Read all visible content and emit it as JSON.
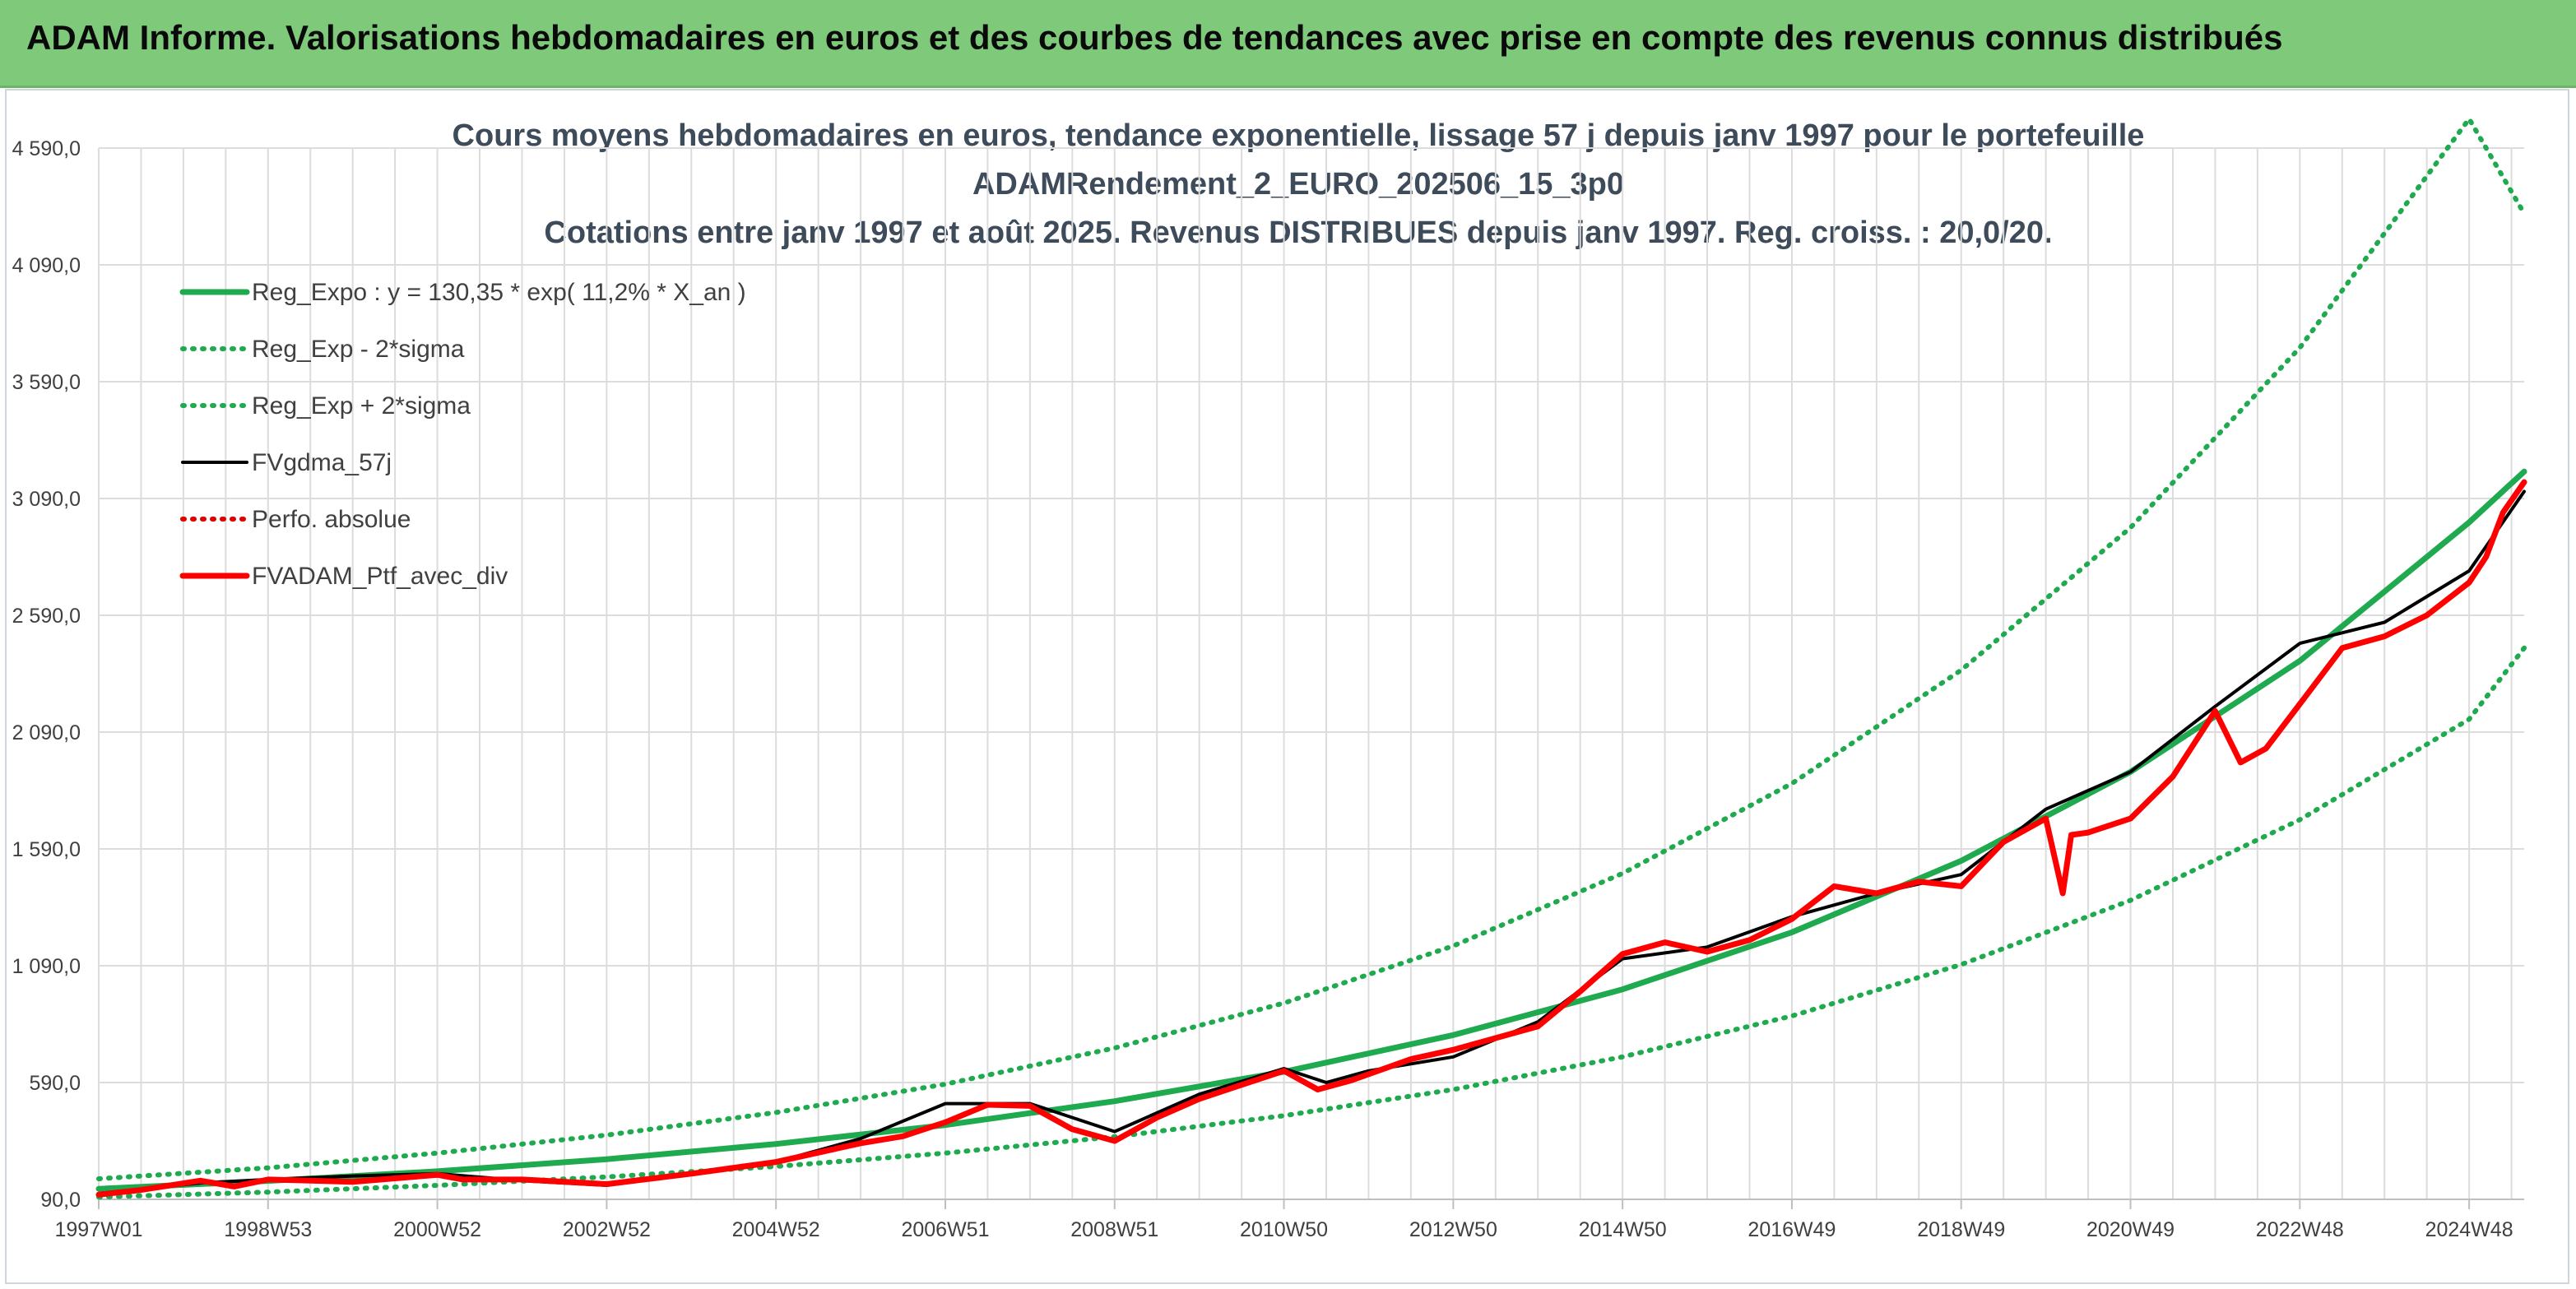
{
  "banner": {
    "title": "ADAM Informe. Valorisations hebdomadaires en euros et des courbes de tendances avec prise en compte des revenus connus distribués",
    "color": "#7ec97a"
  },
  "chart_data": {
    "type": "line",
    "title_lines": [
      "Cours moyens hebdomadaires en euros, tendance exponentielle, lissage 57 j depuis janv 1997 pour le portefeuille",
      "ADAMRendement_2_EURO_202506_15_3p0",
      "Cotations entre janv 1997 et août 2025. Revenus DISTRIBUES depuis janv 1997. Reg. croiss. : 20,0/20."
    ],
    "xlabel": "",
    "ylabel": "",
    "x_range": [
      1997.0,
      2025.65
    ],
    "ylim": [
      90,
      4590
    ],
    "y_ticks": [
      "90,0",
      "590,0",
      "1 090,0",
      "1 590,0",
      "2 090,0",
      "2 590,0",
      "3 090,0",
      "3 590,0",
      "4 090,0",
      "4 590,0"
    ],
    "y_tick_values": [
      90,
      590,
      1090,
      1590,
      2090,
      2590,
      3090,
      3590,
      4090,
      4590
    ],
    "x_ticks": [
      "1997W01",
      "1998W53",
      "2000W52",
      "2002W52",
      "2004W52",
      "2006W51",
      "2008W51",
      "2010W50",
      "2012W50",
      "2014W50",
      "2016W49",
      "2018W49",
      "2020W49",
      "2022W48",
      "2024W48"
    ],
    "x_tick_years": [
      1997.0,
      1999.0,
      2001.0,
      2003.0,
      2005.0,
      2007.0,
      2009.0,
      2011.0,
      2013.0,
      2015.0,
      2017.0,
      2019.0,
      2021.0,
      2023.0,
      2025.0
    ],
    "grid": true,
    "legend_position": "top-left",
    "series": [
      {
        "name": "Reg_Expo : y = 130,35 * exp( 11,2% *  X_an )",
        "style": "solid",
        "color": "#1faa4f",
        "x": [
          1997.0,
          1999.0,
          2001.0,
          2003.0,
          2005.0,
          2007.0,
          2009.0,
          2011.0,
          2013.0,
          2015.0,
          2017.0,
          2019.0,
          2021.0,
          2023.0,
          2025.0,
          2025.65
        ],
        "y": [
          135,
          169,
          210,
          262,
          327,
          408,
          510,
          636,
          793,
          989,
          1233,
          1539,
          1920,
          2395,
          2988,
          3205
        ]
      },
      {
        "name": "Reg_Exp - 2*sigma",
        "style": "dotted",
        "color": "#1faa4f",
        "x": [
          1997.0,
          1999.0,
          2001.0,
          2003.0,
          2005.0,
          2007.0,
          2009.0,
          2011.0,
          2013.0,
          2015.0,
          2017.0,
          2019.0,
          2021.0,
          2023.0,
          2025.0,
          2025.65
        ],
        "y": [
          100,
          121,
          150,
          186,
          231,
          288,
          358,
          448,
          560,
          700,
          875,
          1095,
          1370,
          1715,
          2145,
          2450
        ]
      },
      {
        "name": "Reg_Exp + 2*sigma",
        "style": "dotted",
        "color": "#1faa4f",
        "x": [
          1997.0,
          1999.0,
          2001.0,
          2003.0,
          2005.0,
          2007.0,
          2009.0,
          2011.0,
          2013.0,
          2015.0,
          2017.0,
          2019.0,
          2021.0,
          2023.0,
          2025.0,
          2025.65
        ],
        "y": [
          178,
          225,
          288,
          365,
          462,
          583,
          738,
          930,
          1175,
          1485,
          1870,
          2355,
          2965,
          3735,
          4715,
          4310
        ]
      },
      {
        "name": "FVgdma_57j",
        "style": "solid",
        "color": "#000000",
        "x": [
          1997.0,
          1998.2,
          1999.0,
          2000.0,
          2001.0,
          2002.0,
          2003.0,
          2004.0,
          2005.0,
          2006.0,
          2007.0,
          2008.0,
          2009.0,
          2010.0,
          2011.0,
          2011.5,
          2012.0,
          2013.0,
          2014.0,
          2015.0,
          2016.0,
          2017.0,
          2018.0,
          2019.0,
          2020.0,
          2021.0,
          2022.0,
          2023.0,
          2024.0,
          2025.0,
          2025.65
        ],
        "y": [
          115,
          160,
          175,
          190,
          200,
          170,
          150,
          200,
          250,
          350,
          500,
          500,
          380,
          540,
          650,
          590,
          640,
          700,
          850,
          1120,
          1170,
          1300,
          1400,
          1480,
          1760,
          1920,
          2200,
          2470,
          2560,
          2780,
          3120
        ]
      },
      {
        "name": "Perfo. absolue",
        "style": "dotted",
        "color": "#e00000",
        "x": [],
        "y": []
      },
      {
        "name": "FVADAM_Ptf_avec_div",
        "style": "solid",
        "color": "#ff0000",
        "x": [
          1997.0,
          1997.5,
          1998.2,
          1998.6,
          1999.0,
          2000.0,
          2001.0,
          2001.3,
          2002.0,
          2003.0,
          2004.0,
          2005.0,
          2006.0,
          2006.5,
          2007.0,
          2007.5,
          2008.0,
          2008.5,
          2009.0,
          2009.5,
          2010.0,
          2010.5,
          2011.0,
          2011.4,
          2011.8,
          2012.5,
          2013.0,
          2014.0,
          2014.5,
          2015.0,
          2015.5,
          2016.0,
          2016.5,
          2017.0,
          2017.5,
          2018.0,
          2018.5,
          2019.0,
          2019.5,
          2020.0,
          2020.2,
          2020.3,
          2020.5,
          2021.0,
          2021.5,
          2022.0,
          2022.3,
          2022.6,
          2023.0,
          2023.5,
          2024.0,
          2024.5,
          2025.0,
          2025.2,
          2025.4,
          2025.65
        ],
        "y": [
          110,
          130,
          170,
          145,
          175,
          165,
          195,
          175,
          175,
          155,
          200,
          250,
          330,
          360,
          420,
          495,
          490,
          390,
          340,
          440,
          520,
          580,
          640,
          560,
          600,
          690,
          730,
          830,
          980,
          1140,
          1190,
          1150,
          1200,
          1290,
          1430,
          1400,
          1450,
          1430,
          1620,
          1720,
          1400,
          1650,
          1660,
          1720,
          1900,
          2180,
          1960,
          2020,
          2210,
          2450,
          2500,
          2590,
          2730,
          2840,
          3030,
          3160
        ]
      }
    ]
  }
}
